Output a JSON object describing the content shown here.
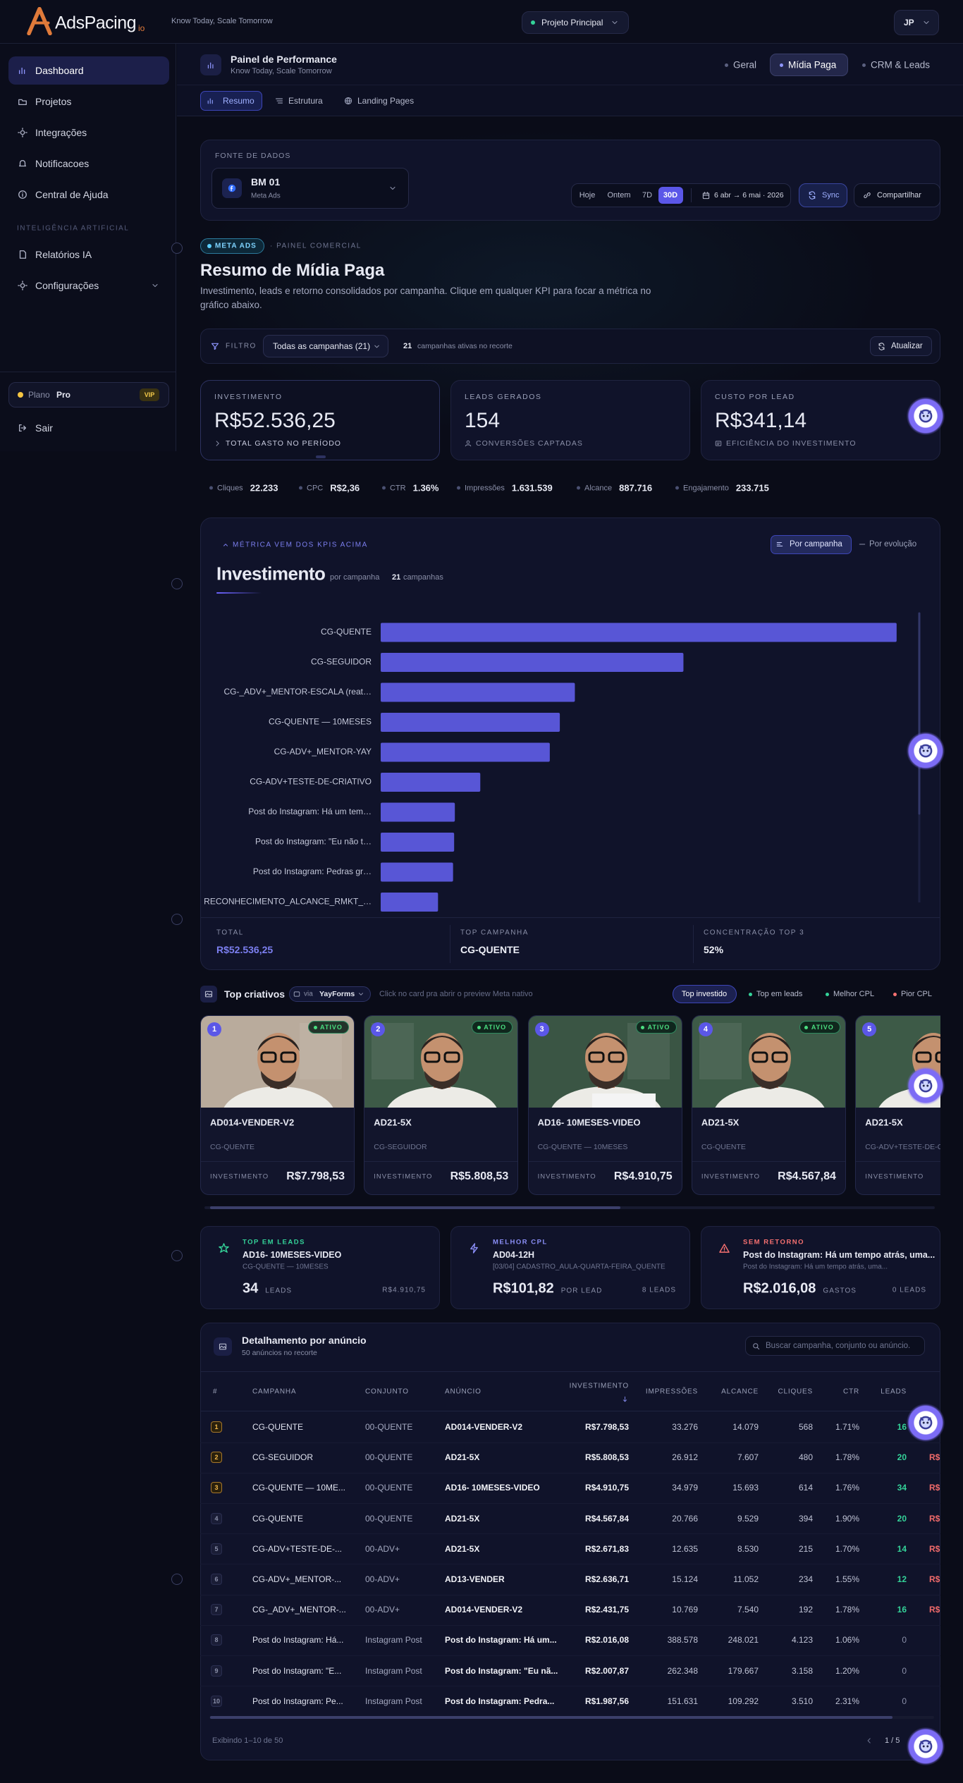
{
  "topbar": {
    "brand": "AdsPacing",
    "brand_suffix": "io",
    "tagline": "Know Today, Scale Tomorrow",
    "project": "Projeto Principal",
    "user": "JP"
  },
  "sidebar": {
    "nav": [
      "Dashboard",
      "Projetos",
      "Integrações",
      "Notificacoes",
      "Central de Ajuda"
    ],
    "section": "INTELIGÊNCIA ARTIFICIAL",
    "ai_nav": [
      "Relatórios IA",
      "Configurações"
    ],
    "plan_label": "Plano",
    "plan": "Pro",
    "plan_badge": "VIP",
    "logout": "Sair"
  },
  "header": {
    "title": "Painel de Performance",
    "subtitle": "Know Today, Scale Tomorrow",
    "tabs": [
      "Geral",
      "Mídia Paga",
      "CRM & Leads"
    ],
    "subtabs": [
      "Resumo",
      "Estrutura",
      "Landing Pages"
    ]
  },
  "source": {
    "label": "FONTE DE DADOS",
    "account": "BM 01",
    "platform": "Meta Ads",
    "periods": [
      "Hoje",
      "Ontem",
      "7D",
      "30D"
    ],
    "date_range": "6 abr → 6 mai · 2026",
    "sync": "Sync",
    "share": "Compartilhar"
  },
  "intro": {
    "badge": "META ADS",
    "section": "· PAINEL COMERCIAL",
    "title": "Resumo de Mídia Paga",
    "description": "Investimento, leads e retorno consolidados por campanha. Clique em qualquer KPI para focar a métrica no gráfico abaixo."
  },
  "filter": {
    "label": "FILTRO",
    "select": "Todas as campanhas (21)",
    "count": 21,
    "count_label": "campanhas ativas no recorte",
    "refresh": "Atualizar"
  },
  "kpis": [
    {
      "label": "INVESTIMENTO",
      "value": "R$52.536,25",
      "note": "TOTAL GASTO NO PERÍODO"
    },
    {
      "label": "LEADS GERADOS",
      "value": 154,
      "note": "CONVERSÕES CAPTADAS"
    },
    {
      "label": "CUSTO POR LEAD",
      "value": "R$341,14",
      "note": "EFICIÊNCIA DO INVESTIMENTO"
    }
  ],
  "metrics": [
    {
      "label": "Cliques",
      "value": "22.233"
    },
    {
      "label": "CPC",
      "value": "R$2,36"
    },
    {
      "label": "CTR",
      "value": "1.36%"
    },
    {
      "label": "Impressões",
      "value": "1.631.539"
    },
    {
      "label": "Alcance",
      "value": "887.716"
    },
    {
      "label": "Engajamento",
      "value": "233.715"
    }
  ],
  "chart_panel": {
    "hint": "MÉTRICA VEM DOS KPIS ACIMA",
    "toggle": [
      "Por campanha",
      "Por evolução"
    ],
    "subtitle": "por campanha",
    "campaigns_count": 21,
    "campaigns_label": "campanhas",
    "footer": [
      {
        "label": "TOTAL",
        "value": "R$52.536,25"
      },
      {
        "label": "TOP CAMPANHA",
        "value": "CG-QUENTE"
      },
      {
        "label": "CONCENTRAÇÃO TOP 3",
        "value": "52%"
      }
    ]
  },
  "chart_data": {
    "type": "bar",
    "orientation": "horizontal",
    "title": "Investimento",
    "categories": [
      "CG-QUENTE",
      "CG-SEGUIDOR",
      "CG-_ADV+_MENTOR-ESCALA (reat…",
      "CG-QUENTE — 10MESES",
      "CG-ADV+_MENTOR-YAY",
      "CG-ADV+TESTE-DE-CRIATIVO",
      "Post do Instagram: Há um tem…",
      "Post do Instagram: \"Eu não t…",
      "Post do Instagram: Pedras gr…",
      "RECONHECIMENTO_ALCANCE_RMKT_…"
    ],
    "values": [
      14400,
      8450,
      5420,
      5000,
      4720,
      2780,
      2070,
      2050,
      2020,
      1600
    ],
    "color": "#5856d6",
    "xlim": [
      0,
      14600
    ]
  },
  "creatives": {
    "title": "Top criativos",
    "via": "via",
    "source": "YayForms",
    "hint": "Click no card pra abrir o preview Meta nativo",
    "filters": [
      "Top investido",
      "Top em leads",
      "Melhor CPL",
      "Pior CPL"
    ],
    "cards": [
      {
        "rank": 1,
        "status": "ATIVO",
        "name": "AD014-VENDER-V2",
        "campaign": "CG-QUENTE",
        "metric_label": "INVESTIMENTO",
        "metric": "R$7.798,53"
      },
      {
        "rank": 2,
        "status": "ATIVO",
        "name": "AD21-5X",
        "campaign": "CG-SEGUIDOR",
        "metric_label": "INVESTIMENTO",
        "metric": "R$5.808,53"
      },
      {
        "rank": 3,
        "status": "ATIVO",
        "name": "AD16- 10MESES-VIDEO",
        "campaign": "CG-QUENTE — 10MESES",
        "metric_label": "INVESTIMENTO",
        "metric": "R$4.910,75"
      },
      {
        "rank": 4,
        "status": "ATIVO",
        "name": "AD21-5X",
        "campaign": "CG-QUENTE",
        "metric_label": "INVESTIMENTO",
        "metric": "R$4.567,84"
      },
      {
        "rank": 5,
        "name": "AD21-5X",
        "campaign": "CG-ADV+TESTE-DE-C",
        "metric_label": "INVESTIMENTO"
      }
    ]
  },
  "highlights": [
    {
      "label": "TOP EM LEADS",
      "name": "AD16- 10MESES-VIDEO",
      "detail": "CG-QUENTE — 10MESES",
      "value": 34,
      "unit": "LEADS",
      "aside": "R$4.910,75"
    },
    {
      "label": "MELHOR CPL",
      "name": "AD04-12H",
      "detail": "[03/04] CADASTRO_AULA-QUARTA-FEIRA_QUENTE",
      "value": "R$101,82",
      "unit": "POR LEAD",
      "aside": "8 LEADS"
    },
    {
      "label": "SEM RETORNO",
      "name": "Post do Instagram: Há um tempo atrás, uma...",
      "detail": "Post do Instagram: Há um tempo atrás, uma...",
      "value": "R$2.016,08",
      "unit": "GASTOS",
      "aside": "0 LEADS"
    }
  ],
  "table": {
    "title": "Detalhamento por anúncio",
    "subtitle": "50 anúncios no recorte",
    "search": "Buscar campanha, conjunto ou anúncio.",
    "headers": [
      "#",
      "CAMPANHA",
      "CONJUNTO",
      "ANÚNCIO",
      "INVESTIMENTO",
      "IMPRESSÕES",
      "ALCANCE",
      "CLIQUES",
      "CTR",
      "LEADS"
    ],
    "rows": [
      [
        1,
        "CG-QUENTE",
        "00-QUENTE",
        "AD014-VENDER-V2",
        "R$7.798,53",
        "33.276",
        "14.079",
        "568",
        "1.71%",
        "16",
        "R$"
      ],
      [
        2,
        "CG-SEGUIDOR",
        "00-QUENTE",
        "AD21-5X",
        "R$5.808,53",
        "26.912",
        "7.607",
        "480",
        "1.78%",
        "20",
        "R$"
      ],
      [
        3,
        "CG-QUENTE — 10ME...",
        "00-QUENTE",
        "AD16- 10MESES-VIDEO",
        "R$4.910,75",
        "34.979",
        "15.693",
        "614",
        "1.76%",
        "34",
        "R$"
      ],
      [
        4,
        "CG-QUENTE",
        "00-QUENTE",
        "AD21-5X",
        "R$4.567,84",
        "20.766",
        "9.529",
        "394",
        "1.90%",
        "20",
        "R$"
      ],
      [
        5,
        "CG-ADV+TESTE-DE-...",
        "00-ADV+",
        "AD21-5X",
        "R$2.671,83",
        "12.635",
        "8.530",
        "215",
        "1.70%",
        "14",
        "R$"
      ],
      [
        6,
        "CG-ADV+_MENTOR-...",
        "00-ADV+",
        "AD13-VENDER",
        "R$2.636,71",
        "15.124",
        "11.052",
        "234",
        "1.55%",
        "12",
        "R$"
      ],
      [
        7,
        "CG-_ADV+_MENTOR-...",
        "00-ADV+",
        "AD014-VENDER-V2",
        "R$2.431,75",
        "10.769",
        "7.540",
        "192",
        "1.78%",
        "16",
        "R$"
      ],
      [
        8,
        "Post do Instagram: Há...",
        "Instagram Post",
        "Post do Instagram: Há um...",
        "R$2.016,08",
        "388.578",
        "248.021",
        "4.123",
        "1.06%",
        "0"
      ],
      [
        9,
        "Post do Instagram: \"E...",
        "Instagram Post",
        "Post do Instagram: \"Eu nã...",
        "R$2.007,87",
        "262.348",
        "179.667",
        "3.158",
        "1.20%",
        "0"
      ],
      [
        10,
        "Post do Instagram: Pe...",
        "Instagram Post",
        "Post do Instagram: Pedra...",
        "R$1.987,56",
        "151.631",
        "109.292",
        "3.510",
        "2.31%",
        "0"
      ]
    ],
    "footer": "Exibindo 1–10 de 50",
    "pagination": "1 / 5"
  }
}
